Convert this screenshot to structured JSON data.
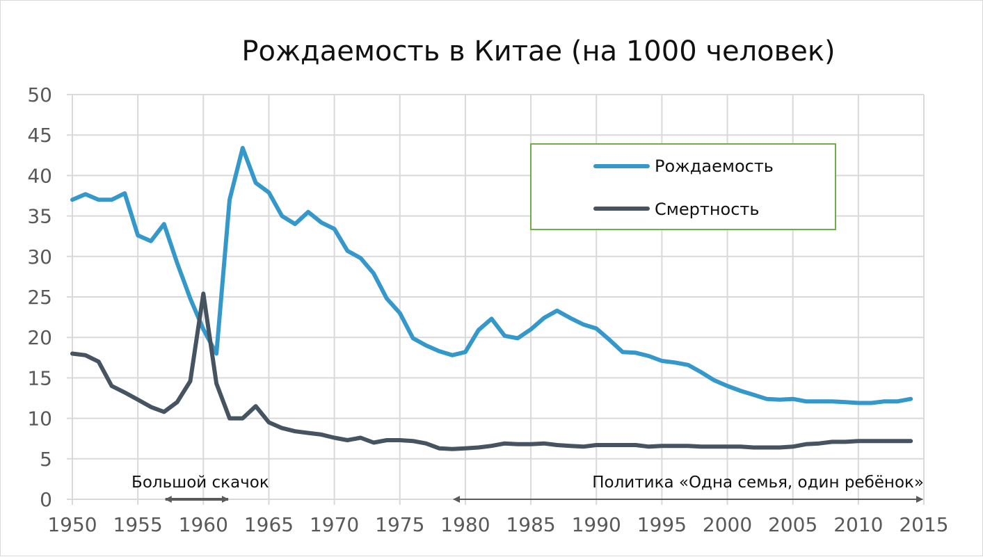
{
  "chart_data": {
    "type": "line",
    "title": "Рождаемость в Китае (на 1000 человек)",
    "xlabel": "",
    "ylabel": "",
    "xlim": [
      1950,
      2015
    ],
    "ylim": [
      0,
      50
    ],
    "x_ticks": [
      1950,
      1955,
      1960,
      1965,
      1970,
      1975,
      1980,
      1985,
      1990,
      1995,
      2000,
      2005,
      2010,
      2015
    ],
    "y_ticks": [
      0,
      5,
      10,
      15,
      20,
      25,
      30,
      35,
      40,
      45,
      50
    ],
    "grid": true,
    "legend_position": "top-right",
    "series": [
      {
        "name": "Рождаемость",
        "color": "#3598cb",
        "x": [
          1950,
          1951,
          1952,
          1953,
          1954,
          1955,
          1956,
          1957,
          1958,
          1959,
          1960,
          1961,
          1962,
          1963,
          1964,
          1965,
          1966,
          1967,
          1968,
          1969,
          1970,
          1971,
          1972,
          1973,
          1974,
          1975,
          1976,
          1977,
          1978,
          1979,
          1980,
          1981,
          1982,
          1983,
          1984,
          1985,
          1986,
          1987,
          1988,
          1989,
          1990,
          1991,
          1992,
          1993,
          1994,
          1995,
          1996,
          1997,
          1998,
          1999,
          2000,
          2001,
          2002,
          2003,
          2004,
          2005,
          2006,
          2007,
          2008,
          2009,
          2010,
          2011,
          2012,
          2013,
          2014
        ],
        "values": [
          37.0,
          37.7,
          37.0,
          37.0,
          37.8,
          32.6,
          31.9,
          34.0,
          29.2,
          24.8,
          21.0,
          18.0,
          37.0,
          43.4,
          39.1,
          37.9,
          35.0,
          34.0,
          35.5,
          34.2,
          33.4,
          30.7,
          29.8,
          27.9,
          24.8,
          23.0,
          19.9,
          19.0,
          18.3,
          17.8,
          18.2,
          20.9,
          22.3,
          20.2,
          19.9,
          21.0,
          22.4,
          23.3,
          22.4,
          21.6,
          21.1,
          19.7,
          18.2,
          18.1,
          17.7,
          17.1,
          16.9,
          16.6,
          15.7,
          14.7,
          14.0,
          13.4,
          12.9,
          12.4,
          12.3,
          12.4,
          12.1,
          12.1,
          12.1,
          12.0,
          11.9,
          11.9,
          12.1,
          12.1,
          12.4
        ]
      },
      {
        "name": "Смертность",
        "color": "#465461",
        "x": [
          1950,
          1951,
          1952,
          1953,
          1954,
          1955,
          1956,
          1957,
          1958,
          1959,
          1960,
          1961,
          1962,
          1963,
          1964,
          1965,
          1966,
          1967,
          1968,
          1969,
          1970,
          1971,
          1972,
          1973,
          1974,
          1975,
          1976,
          1977,
          1978,
          1979,
          1980,
          1981,
          1982,
          1983,
          1984,
          1985,
          1986,
          1987,
          1988,
          1989,
          1990,
          1991,
          1992,
          1993,
          1994,
          1995,
          1996,
          1997,
          1998,
          1999,
          2000,
          2001,
          2002,
          2003,
          2004,
          2005,
          2006,
          2007,
          2008,
          2009,
          2010,
          2011,
          2012,
          2013,
          2014
        ],
        "values": [
          18.0,
          17.8,
          17.0,
          14.0,
          13.2,
          12.3,
          11.4,
          10.8,
          12.0,
          14.6,
          25.4,
          14.3,
          10.0,
          10.0,
          11.5,
          9.5,
          8.8,
          8.4,
          8.2,
          8.0,
          7.6,
          7.3,
          7.6,
          7.0,
          7.3,
          7.3,
          7.2,
          6.9,
          6.3,
          6.2,
          6.3,
          6.4,
          6.6,
          6.9,
          6.8,
          6.8,
          6.9,
          6.7,
          6.6,
          6.5,
          6.7,
          6.7,
          6.7,
          6.7,
          6.5,
          6.6,
          6.6,
          6.6,
          6.5,
          6.5,
          6.5,
          6.5,
          6.4,
          6.4,
          6.4,
          6.5,
          6.8,
          6.9,
          7.1,
          7.1,
          7.2,
          7.2,
          7.2,
          7.2,
          7.2
        ]
      }
    ],
    "annotations": [
      {
        "label": "Большой скачок",
        "x_start": 1957,
        "x_end": 1962
      },
      {
        "label": "Политика «Одна семья, один ребёнок»",
        "x_start": 1979,
        "x_end": 2015
      }
    ]
  }
}
